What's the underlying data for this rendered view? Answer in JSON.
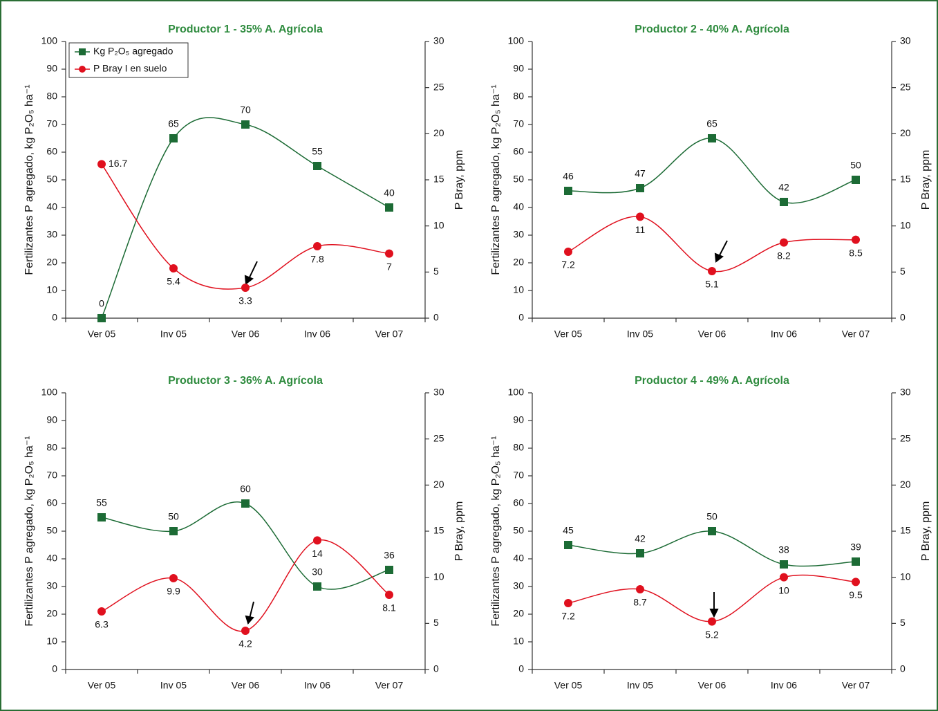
{
  "chart_data": [
    {
      "type": "line",
      "title": "Productor 1 - 35% A. Agrícola",
      "categories": [
        "Ver 05",
        "Inv 05",
        "Ver 06",
        "Inv 06",
        "Ver 07"
      ],
      "ylabel": "Fertilizantes P agregado, kg P₂O₅ ha⁻¹",
      "y2label": "P Bray, ppm",
      "ylim": [
        0,
        100
      ],
      "yticks": [
        0,
        10,
        20,
        30,
        40,
        50,
        60,
        70,
        80,
        90,
        100
      ],
      "y2lim": [
        0,
        30
      ],
      "y2ticks": [
        0,
        5,
        10,
        15,
        20,
        25,
        30
      ],
      "legend": "upper left",
      "series": [
        {
          "name": "Kg P₂O₅ agregado",
          "color": "#1c6b35",
          "marker": "square",
          "values": [
            0,
            65,
            70,
            55,
            40
          ]
        },
        {
          "name": "P Bray I en suelo",
          "color": "#e0101e",
          "marker": "circle",
          "axis": "y2",
          "values": [
            16.7,
            5.4,
            3.3,
            7.8,
            7
          ]
        }
      ]
    },
    {
      "type": "line",
      "title": "Productor 2 - 40% A. Agrícola",
      "categories": [
        "Ver 05",
        "Inv 05",
        "Ver 06",
        "Inv 06",
        "Ver 07"
      ],
      "ylabel": "Fertilizantes P agregado, kg P₂O₅ ha⁻¹",
      "y2label": "P Bray, ppm",
      "ylim": [
        0,
        100
      ],
      "yticks": [
        0,
        10,
        20,
        30,
        40,
        50,
        60,
        70,
        80,
        90,
        100
      ],
      "y2lim": [
        0,
        30
      ],
      "y2ticks": [
        0,
        5,
        10,
        15,
        20,
        25,
        30
      ],
      "series": [
        {
          "name": "Kg P₂O₅ agregado",
          "color": "#1c6b35",
          "marker": "square",
          "values": [
            46,
            47,
            65,
            42,
            50
          ]
        },
        {
          "name": "P Bray I en suelo",
          "color": "#e0101e",
          "marker": "circle",
          "axis": "y2",
          "values": [
            7.2,
            11,
            5.1,
            8.2,
            8.5
          ]
        }
      ]
    },
    {
      "type": "line",
      "title": "Productor 3 - 36% A. Agrícola",
      "categories": [
        "Ver 05",
        "Inv 05",
        "Ver 06",
        "Inv 06",
        "Ver 07"
      ],
      "ylabel": "Fertilizantes P agregado, kg P₂O₅ ha⁻¹",
      "y2label": "P Bray, ppm",
      "ylim": [
        0,
        100
      ],
      "yticks": [
        0,
        10,
        20,
        30,
        40,
        50,
        60,
        70,
        80,
        90,
        100
      ],
      "y2lim": [
        0,
        30
      ],
      "y2ticks": [
        0,
        5,
        10,
        15,
        20,
        25,
        30
      ],
      "series": [
        {
          "name": "Kg P₂O₅ agregado",
          "color": "#1c6b35",
          "marker": "square",
          "values": [
            55,
            50,
            60,
            30,
            36
          ]
        },
        {
          "name": "P Bray I en suelo",
          "color": "#e0101e",
          "marker": "circle",
          "axis": "y2",
          "values": [
            6.3,
            9.9,
            4.2,
            14,
            8.1
          ]
        }
      ]
    },
    {
      "type": "line",
      "title": "Productor 4 - 49% A. Agrícola",
      "categories": [
        "Ver 05",
        "Inv 05",
        "Ver 06",
        "Inv 06",
        "Ver 07"
      ],
      "ylabel": "Fertilizantes P agregado, kg P₂O₅ ha⁻¹",
      "y2label": "P Bray, ppm",
      "ylim": [
        0,
        100
      ],
      "yticks": [
        0,
        10,
        20,
        30,
        40,
        50,
        60,
        70,
        80,
        90,
        100
      ],
      "y2lim": [
        0,
        30
      ],
      "y2ticks": [
        0,
        5,
        10,
        15,
        20,
        25,
        30
      ],
      "series": [
        {
          "name": "Kg P₂O₅ agregado",
          "color": "#1c6b35",
          "marker": "square",
          "values": [
            45,
            42,
            50,
            38,
            39
          ]
        },
        {
          "name": "P Bray I en suelo",
          "color": "#e0101e",
          "marker": "circle",
          "axis": "y2",
          "values": [
            7.2,
            8.7,
            5.2,
            10,
            9.5
          ]
        }
      ]
    }
  ]
}
